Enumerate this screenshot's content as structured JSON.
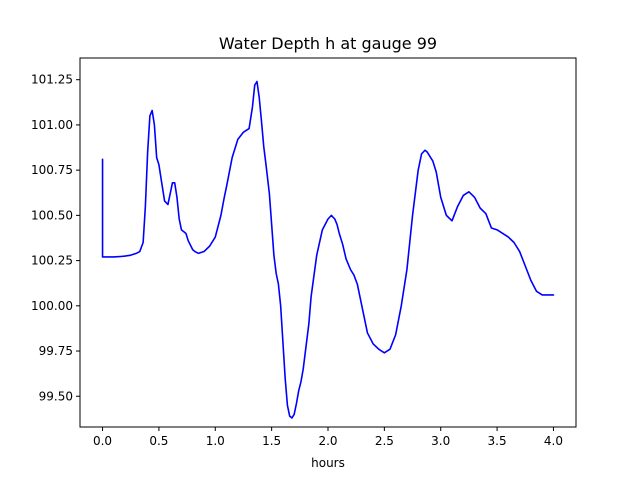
{
  "chart_data": {
    "type": "line",
    "title": "Water Depth h at gauge 99",
    "xlabel": "hours",
    "ylabel": "",
    "xlim": [
      -0.2,
      4.2
    ],
    "ylim": [
      99.33,
      101.37
    ],
    "xticks": [
      0.0,
      0.5,
      1.0,
      1.5,
      2.0,
      2.5,
      3.0,
      3.5,
      4.0
    ],
    "xtick_labels": [
      "0.0",
      "0.5",
      "1.0",
      "1.5",
      "2.0",
      "2.5",
      "3.0",
      "3.5",
      "4.0"
    ],
    "yticks": [
      99.5,
      99.75,
      100.0,
      100.25,
      100.5,
      100.75,
      101.0,
      101.25
    ],
    "ytick_labels": [
      "99.50",
      "99.75",
      "100.00",
      "100.25",
      "100.50",
      "100.75",
      "101.00",
      "101.25"
    ],
    "grid": false,
    "series": [
      {
        "color": "#0000ff",
        "x": [
          0.0,
          0.0,
          0.0,
          0.05,
          0.1,
          0.15,
          0.2,
          0.25,
          0.3,
          0.33,
          0.36,
          0.38,
          0.4,
          0.42,
          0.44,
          0.46,
          0.48,
          0.5,
          0.52,
          0.55,
          0.58,
          0.6,
          0.62,
          0.64,
          0.66,
          0.68,
          0.7,
          0.72,
          0.74,
          0.76,
          0.8,
          0.82,
          0.85,
          0.9,
          0.95,
          1.0,
          1.05,
          1.08,
          1.1,
          1.15,
          1.2,
          1.25,
          1.3,
          1.33,
          1.35,
          1.37,
          1.39,
          1.41,
          1.43,
          1.45,
          1.48,
          1.5,
          1.52,
          1.54,
          1.56,
          1.58,
          1.6,
          1.62,
          1.64,
          1.66,
          1.68,
          1.7,
          1.72,
          1.74,
          1.76,
          1.78,
          1.8,
          1.83,
          1.85,
          1.9,
          1.95,
          2.0,
          2.03,
          2.06,
          2.08,
          2.1,
          2.13,
          2.16,
          2.2,
          2.23,
          2.26,
          2.3,
          2.35,
          2.4,
          2.45,
          2.5,
          2.55,
          2.6,
          2.65,
          2.7,
          2.75,
          2.8,
          2.83,
          2.86,
          2.88,
          2.9,
          2.93,
          2.96,
          3.0,
          3.05,
          3.1,
          3.15,
          3.2,
          3.25,
          3.3,
          3.35,
          3.4,
          3.45,
          3.5,
          3.55,
          3.6,
          3.65,
          3.7,
          3.75,
          3.8,
          3.85,
          3.9,
          3.95,
          4.0
        ],
        "y": [
          100.81,
          100.52,
          100.27,
          100.27,
          100.27,
          100.272,
          100.275,
          100.28,
          100.29,
          100.3,
          100.35,
          100.55,
          100.85,
          101.05,
          101.08,
          101.0,
          100.82,
          100.78,
          100.7,
          100.58,
          100.56,
          100.62,
          100.68,
          100.68,
          100.6,
          100.48,
          100.42,
          100.41,
          100.4,
          100.36,
          100.31,
          100.3,
          100.29,
          100.3,
          100.33,
          100.38,
          100.5,
          100.6,
          100.66,
          100.82,
          100.92,
          100.96,
          100.98,
          101.1,
          101.22,
          101.24,
          101.15,
          101.02,
          100.88,
          100.78,
          100.62,
          100.45,
          100.28,
          100.18,
          100.12,
          100.0,
          99.8,
          99.6,
          99.45,
          99.39,
          99.38,
          99.4,
          99.46,
          99.53,
          99.58,
          99.65,
          99.75,
          99.9,
          100.05,
          100.28,
          100.42,
          100.48,
          100.5,
          100.48,
          100.45,
          100.4,
          100.34,
          100.26,
          100.2,
          100.17,
          100.12,
          100.0,
          99.85,
          99.79,
          99.76,
          99.74,
          99.76,
          99.84,
          100.0,
          100.2,
          100.5,
          100.75,
          100.84,
          100.86,
          100.85,
          100.83,
          100.8,
          100.74,
          100.6,
          100.5,
          100.47,
          100.55,
          100.61,
          100.63,
          100.6,
          100.54,
          100.51,
          100.43,
          100.42,
          100.4,
          100.38,
          100.35,
          100.3,
          100.22,
          100.14,
          100.08,
          100.06,
          100.06,
          100.06
        ]
      }
    ]
  }
}
